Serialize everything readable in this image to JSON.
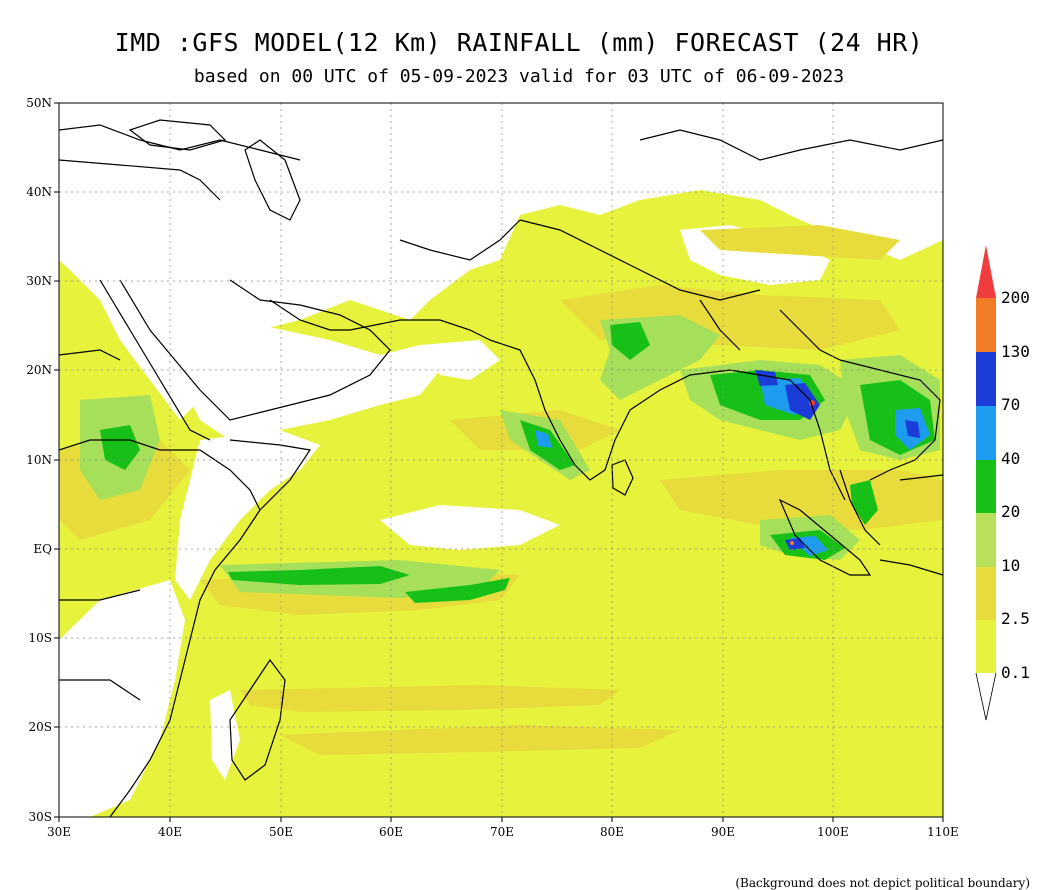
{
  "title": "IMD :GFS MODEL(12 Km) RAINFALL (mm) FORECAST (24 HR)",
  "subtitle": "based on 00 UTC of 05-09-2023 valid for 03 UTC of 06-09-2023",
  "footnote": "(Background does not depict political boundary)",
  "map": {
    "projection": "lat-lon",
    "lon_range": [
      30,
      110
    ],
    "lat_range": [
      -30,
      50
    ],
    "lon_ticks": [
      "30E",
      "40E",
      "50E",
      "60E",
      "70E",
      "80E",
      "90E",
      "100E",
      "110E"
    ],
    "lat_ticks": [
      "50N",
      "40N",
      "30N",
      "20N",
      "10N",
      "EQ",
      "10S",
      "20S",
      "30S"
    ],
    "grid": "dotted"
  },
  "colorbar": {
    "units": "mm",
    "labels": [
      "0.1",
      "2.5",
      "10",
      "20",
      "40",
      "70",
      "130",
      "200"
    ],
    "colors": [
      "#e6f23c",
      "#e8dc3c",
      "#b8e05a",
      "#7ed65a",
      "#17c017",
      "#1e9cf0",
      "#1c3cd8",
      "#f07d26",
      "#f03c3c"
    ]
  },
  "colors": {
    "land_white": "#ffffff",
    "light_rain": "#e6f23c",
    "moderate": "#e8dc3c",
    "light_green": "#a6e05a",
    "green": "#17c017",
    "light_blue": "#1e9cf0",
    "blue": "#1c3cd8",
    "orange": "#f07d26",
    "red": "#f03c3c"
  }
}
